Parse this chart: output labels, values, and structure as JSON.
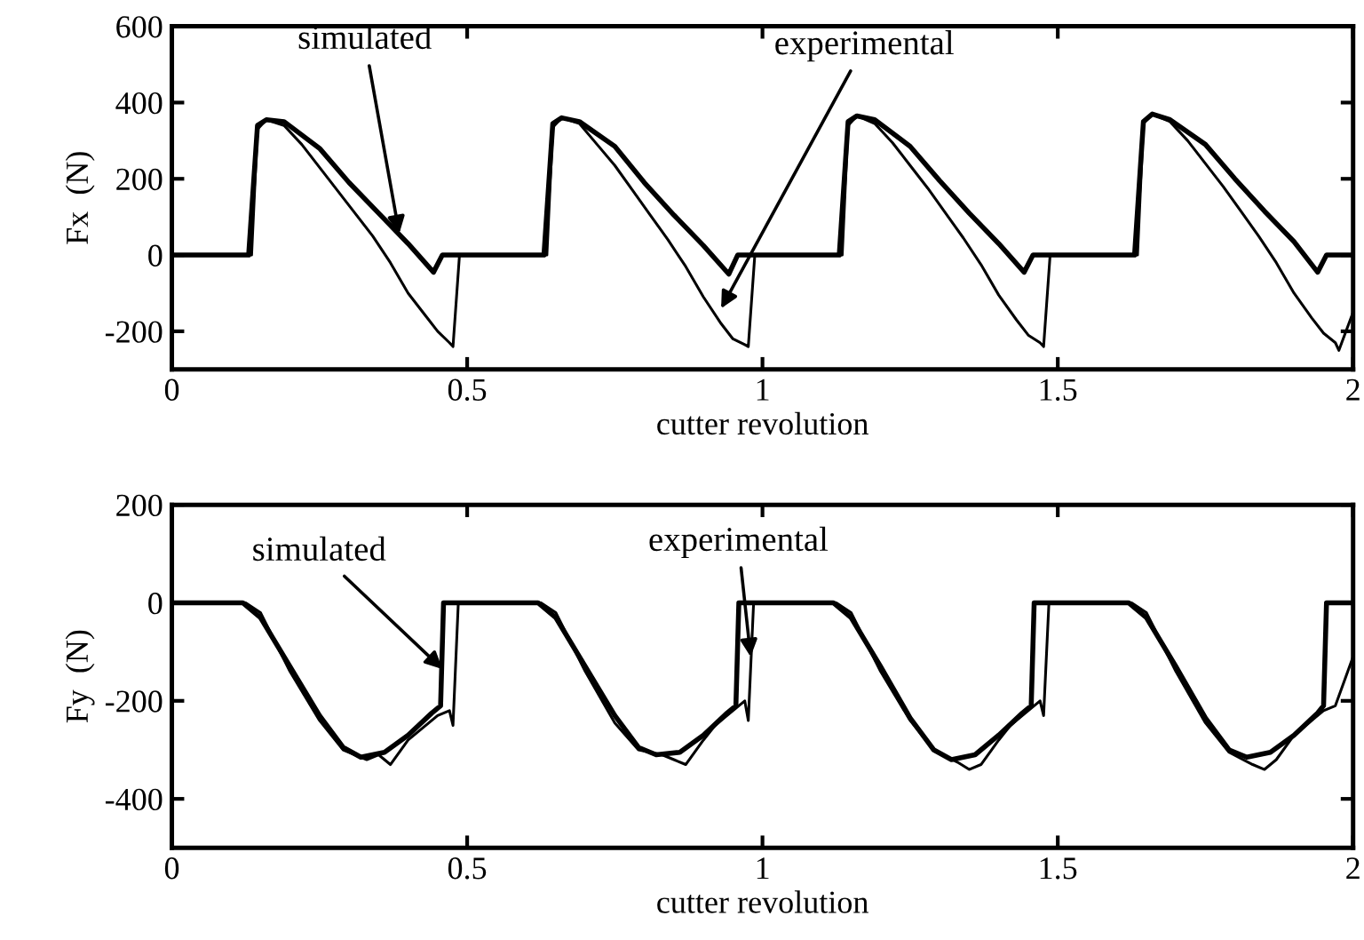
{
  "chart_data": [
    {
      "type": "line",
      "xlabel": "cutter revolution",
      "ylabel": "Fx  (N)",
      "xlim": [
        0,
        2
      ],
      "xticks": [
        0,
        0.5,
        1,
        1.5,
        2
      ],
      "ylim": [
        -300,
        600
      ],
      "yticks": [
        -200,
        0,
        200,
        400,
        600
      ],
      "series": [
        {
          "color": "#000000",
          "x": [
            0,
            0.13,
            0.145,
            0.16,
            0.19,
            0.25,
            0.3,
            0.35,
            0.4,
            0.443,
            0.458,
            0.63,
            0.645,
            0.66,
            0.69,
            0.75,
            0.8,
            0.85,
            0.9,
            0.943,
            0.958,
            1.13,
            1.145,
            1.16,
            1.19,
            1.25,
            1.3,
            1.35,
            1.4,
            1.443,
            1.458,
            1.63,
            1.645,
            1.66,
            1.69,
            1.75,
            1.8,
            1.85,
            1.9,
            1.94,
            1.955,
            2.0
          ],
          "values": [
            0,
            0,
            340,
            355,
            350,
            280,
            190,
            110,
            30,
            -45,
            0,
            0,
            345,
            360,
            350,
            285,
            190,
            105,
            25,
            -50,
            0,
            0,
            350,
            365,
            355,
            285,
            195,
            110,
            30,
            -45,
            0,
            0,
            350,
            370,
            355,
            290,
            200,
            115,
            35,
            -45,
            0,
            0
          ]
        },
        {
          "color": "#000000",
          "x": [
            0,
            0.135,
            0.145,
            0.16,
            0.19,
            0.22,
            0.25,
            0.28,
            0.31,
            0.34,
            0.37,
            0.4,
            0.43,
            0.45,
            0.47,
            0.476,
            0.487,
            0.635,
            0.645,
            0.66,
            0.69,
            0.72,
            0.75,
            0.78,
            0.81,
            0.84,
            0.87,
            0.9,
            0.93,
            0.95,
            0.97,
            0.976,
            0.987,
            1.135,
            1.145,
            1.16,
            1.19,
            1.22,
            1.25,
            1.28,
            1.31,
            1.34,
            1.37,
            1.4,
            1.43,
            1.45,
            1.47,
            1.476,
            1.487,
            1.635,
            1.645,
            1.66,
            1.69,
            1.72,
            1.75,
            1.78,
            1.81,
            1.84,
            1.87,
            1.9,
            1.93,
            1.95,
            1.97,
            1.976,
            2.0
          ],
          "values": [
            0,
            0,
            330,
            355,
            340,
            290,
            230,
            170,
            110,
            50,
            -20,
            -100,
            -160,
            -200,
            -230,
            -240,
            0,
            0,
            335,
            360,
            345,
            290,
            235,
            170,
            105,
            40,
            -30,
            -110,
            -180,
            -220,
            -235,
            -240,
            0,
            0,
            340,
            365,
            345,
            295,
            235,
            175,
            110,
            45,
            -25,
            -105,
            -170,
            -210,
            -230,
            -240,
            0,
            0,
            345,
            370,
            350,
            300,
            240,
            180,
            115,
            50,
            -20,
            -100,
            -165,
            -205,
            -230,
            -250,
            -150
          ]
        }
      ],
      "annotations": [
        {
          "text": "simulated",
          "x": 0.385,
          "y": 56
        },
        {
          "text": "experimental",
          "x": 0.93,
          "y": -140
        }
      ]
    },
    {
      "type": "line",
      "xlabel": "cutter revolution",
      "ylabel": "Fy  (N)",
      "xlim": [
        0,
        2
      ],
      "xticks": [
        0,
        0.5,
        1,
        1.5,
        2
      ],
      "ylim": [
        -500,
        200
      ],
      "yticks": [
        -400,
        -200,
        0,
        200
      ],
      "series": [
        {
          "color": "#000000",
          "x": [
            0,
            0.12,
            0.15,
            0.2,
            0.25,
            0.29,
            0.32,
            0.36,
            0.4,
            0.44,
            0.455,
            0.46,
            0.62,
            0.65,
            0.7,
            0.75,
            0.79,
            0.82,
            0.86,
            0.9,
            0.94,
            0.955,
            0.96,
            1.12,
            1.15,
            1.2,
            1.25,
            1.29,
            1.32,
            1.36,
            1.4,
            1.44,
            1.455,
            1.46,
            1.62,
            1.65,
            1.7,
            1.75,
            1.79,
            1.82,
            1.86,
            1.9,
            1.94,
            1.95,
            1.955,
            2.0
          ],
          "values": [
            0,
            0,
            -30,
            -130,
            -230,
            -295,
            -315,
            -305,
            -270,
            -225,
            -210,
            0,
            0,
            -30,
            -130,
            -230,
            -295,
            -310,
            -305,
            -270,
            -225,
            -210,
            0,
            0,
            -30,
            -130,
            -235,
            -300,
            -320,
            -310,
            -270,
            -225,
            -210,
            0,
            0,
            -30,
            -130,
            -235,
            -300,
            -315,
            -305,
            -270,
            -225,
            -210,
            0,
            0
          ]
        },
        {
          "color": "#000000",
          "x": [
            0,
            0.125,
            0.15,
            0.2,
            0.25,
            0.29,
            0.33,
            0.35,
            0.37,
            0.4,
            0.42,
            0.45,
            0.47,
            0.476,
            0.485,
            0.625,
            0.65,
            0.7,
            0.75,
            0.79,
            0.83,
            0.85,
            0.87,
            0.9,
            0.92,
            0.95,
            0.97,
            0.976,
            0.985,
            1.125,
            1.15,
            1.2,
            1.25,
            1.29,
            1.33,
            1.35,
            1.37,
            1.4,
            1.42,
            1.45,
            1.47,
            1.476,
            1.485,
            1.625,
            1.65,
            1.7,
            1.75,
            1.79,
            1.83,
            1.85,
            1.87,
            1.9,
            1.92,
            1.95,
            1.97,
            2.0
          ],
          "values": [
            0,
            0,
            -20,
            -140,
            -240,
            -300,
            -320,
            -310,
            -330,
            -280,
            -260,
            -230,
            -220,
            -250,
            0,
            0,
            -20,
            -140,
            -245,
            -300,
            -310,
            -320,
            -330,
            -280,
            -250,
            -220,
            -200,
            -240,
            0,
            0,
            -20,
            -140,
            -240,
            -300,
            -325,
            -340,
            -330,
            -280,
            -250,
            -220,
            -200,
            -230,
            0,
            0,
            -20,
            -140,
            -245,
            -305,
            -330,
            -340,
            -320,
            -270,
            -250,
            -220,
            -210,
            -110
          ]
        }
      ],
      "annotations": [
        {
          "text": "simulated",
          "x": 0.458,
          "y": -135
        },
        {
          "text": "experimental",
          "x": 0.98,
          "y": -110
        }
      ]
    }
  ]
}
